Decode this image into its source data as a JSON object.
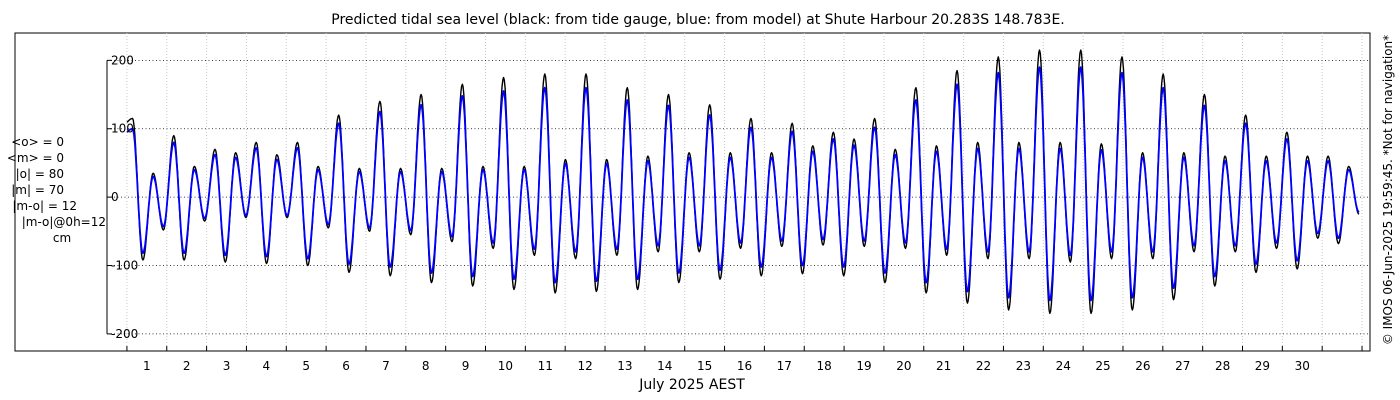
{
  "chart_data": {
    "type": "line",
    "title": "Predicted tidal sea level (black: from tide gauge, blue: from model) at Shute Harbour 20.283S 148.783E.",
    "xlabel": "July 2025 AEST",
    "ylabel": "",
    "x_ticks": [
      "1",
      "2",
      "3",
      "4",
      "5",
      "6",
      "7",
      "8",
      "9",
      "10",
      "11",
      "12",
      "13",
      "14",
      "15",
      "16",
      "17",
      "18",
      "19",
      "20",
      "21",
      "22",
      "23",
      "24",
      "25",
      "26",
      "27",
      "28",
      "29",
      "30"
    ],
    "y_ticks": [
      -200,
      -100,
      0,
      100,
      200
    ],
    "ylim": [
      -225,
      240
    ],
    "xlim_days": [
      -0.5,
      31.2
    ],
    "grid": true,
    "stats": [
      "<o> = 0",
      "<m> = 0",
      "|o| = 80",
      "|m| = 70",
      "|m-o| = 12",
      "|m-o|@0h=12",
      "cm"
    ],
    "side_note": "© IMOS 06-Jun-2025 19:59:45. *Not for navigation*",
    "series": [
      {
        "name": "tide gauge",
        "color": "#000000",
        "daily": [
          {
            "hh": 115,
            "lh": 35,
            "hl": -92,
            "ll": -48
          },
          {
            "hh": 90,
            "lh": 45,
            "hl": -92,
            "ll": -35
          },
          {
            "hh": 70,
            "lh": 65,
            "hl": -95,
            "ll": -30
          },
          {
            "hh": 80,
            "lh": 62,
            "hl": -97,
            "ll": -30
          },
          {
            "hh": 80,
            "lh": 45,
            "hl": -100,
            "ll": -45
          },
          {
            "hh": 120,
            "lh": 42,
            "hl": -110,
            "ll": -50
          },
          {
            "hh": 140,
            "lh": 42,
            "hl": -115,
            "ll": -55
          },
          {
            "hh": 150,
            "lh": 42,
            "hl": -125,
            "ll": -65
          },
          {
            "hh": 165,
            "lh": 45,
            "hl": -130,
            "ll": -75
          },
          {
            "hh": 175,
            "lh": 45,
            "hl": -135,
            "ll": -85
          },
          {
            "hh": 180,
            "lh": 55,
            "hl": -140,
            "ll": -90
          },
          {
            "hh": 180,
            "lh": 55,
            "hl": -138,
            "ll": -85
          },
          {
            "hh": 160,
            "lh": 60,
            "hl": -135,
            "ll": -80
          },
          {
            "hh": 150,
            "lh": 65,
            "hl": -125,
            "ll": -80
          },
          {
            "hh": 135,
            "lh": 65,
            "hl": -120,
            "ll": -75
          },
          {
            "hh": 115,
            "lh": 65,
            "hl": -115,
            "ll": -72
          },
          {
            "hh": 108,
            "lh": 75,
            "hl": -112,
            "ll": -70
          },
          {
            "hh": 95,
            "lh": 85,
            "hl": -115,
            "ll": -72
          },
          {
            "hh": 115,
            "lh": 70,
            "hl": -125,
            "ll": -75
          },
          {
            "hh": 160,
            "lh": 75,
            "hl": -140,
            "ll": -85
          },
          {
            "hh": 185,
            "lh": 80,
            "hl": -155,
            "ll": -90
          },
          {
            "hh": 205,
            "lh": 80,
            "hl": -165,
            "ll": -90
          },
          {
            "hh": 215,
            "lh": 80,
            "hl": -170,
            "ll": -95
          },
          {
            "hh": 215,
            "lh": 78,
            "hl": -170,
            "ll": -90
          },
          {
            "hh": 205,
            "lh": 65,
            "hl": -165,
            "ll": -90
          },
          {
            "hh": 180,
            "lh": 65,
            "hl": -150,
            "ll": -80
          },
          {
            "hh": 150,
            "lh": 60,
            "hl": -130,
            "ll": -80
          },
          {
            "hh": 120,
            "lh": 60,
            "hl": -110,
            "ll": -75
          },
          {
            "hh": 95,
            "lh": 60,
            "hl": -105,
            "ll": -60
          },
          {
            "hh": 60,
            "lh": 45,
            "hl": -68,
            "ll": -25
          }
        ]
      },
      {
        "name": "model",
        "color": "#0000ff",
        "daily": [
          {
            "hh": 100,
            "lh": 30,
            "hl": -82,
            "ll": -43
          },
          {
            "hh": 80,
            "lh": 40,
            "hl": -82,
            "ll": -31
          },
          {
            "hh": 62,
            "lh": 58,
            "hl": -85,
            "ll": -27
          },
          {
            "hh": 72,
            "lh": 55,
            "hl": -87,
            "ll": -27
          },
          {
            "hh": 72,
            "lh": 40,
            "hl": -90,
            "ll": -40
          },
          {
            "hh": 108,
            "lh": 37,
            "hl": -98,
            "ll": -45
          },
          {
            "hh": 125,
            "lh": 37,
            "hl": -102,
            "ll": -49
          },
          {
            "hh": 135,
            "lh": 37,
            "hl": -111,
            "ll": -58
          },
          {
            "hh": 148,
            "lh": 40,
            "hl": -116,
            "ll": -67
          },
          {
            "hh": 155,
            "lh": 40,
            "hl": -120,
            "ll": -76
          },
          {
            "hh": 160,
            "lh": 49,
            "hl": -125,
            "ll": -80
          },
          {
            "hh": 160,
            "lh": 49,
            "hl": -123,
            "ll": -76
          },
          {
            "hh": 142,
            "lh": 53,
            "hl": -120,
            "ll": -71
          },
          {
            "hh": 134,
            "lh": 58,
            "hl": -111,
            "ll": -71
          },
          {
            "hh": 120,
            "lh": 58,
            "hl": -107,
            "ll": -67
          },
          {
            "hh": 102,
            "lh": 58,
            "hl": -102,
            "ll": -64
          },
          {
            "hh": 96,
            "lh": 67,
            "hl": -100,
            "ll": -62
          },
          {
            "hh": 85,
            "lh": 76,
            "hl": -102,
            "ll": -64
          },
          {
            "hh": 102,
            "lh": 62,
            "hl": -111,
            "ll": -67
          },
          {
            "hh": 142,
            "lh": 67,
            "hl": -125,
            "ll": -76
          },
          {
            "hh": 165,
            "lh": 71,
            "hl": -138,
            "ll": -80
          },
          {
            "hh": 182,
            "lh": 71,
            "hl": -147,
            "ll": -80
          },
          {
            "hh": 190,
            "lh": 71,
            "hl": -151,
            "ll": -85
          },
          {
            "hh": 190,
            "lh": 69,
            "hl": -151,
            "ll": -80
          },
          {
            "hh": 182,
            "lh": 58,
            "hl": -147,
            "ll": -80
          },
          {
            "hh": 160,
            "lh": 58,
            "hl": -133,
            "ll": -71
          },
          {
            "hh": 134,
            "lh": 53,
            "hl": -116,
            "ll": -71
          },
          {
            "hh": 108,
            "lh": 53,
            "hl": -98,
            "ll": -67
          },
          {
            "hh": 85,
            "lh": 53,
            "hl": -93,
            "ll": -53
          },
          {
            "hh": 53,
            "lh": 40,
            "hl": -60,
            "ll": -22
          }
        ]
      }
    ]
  }
}
